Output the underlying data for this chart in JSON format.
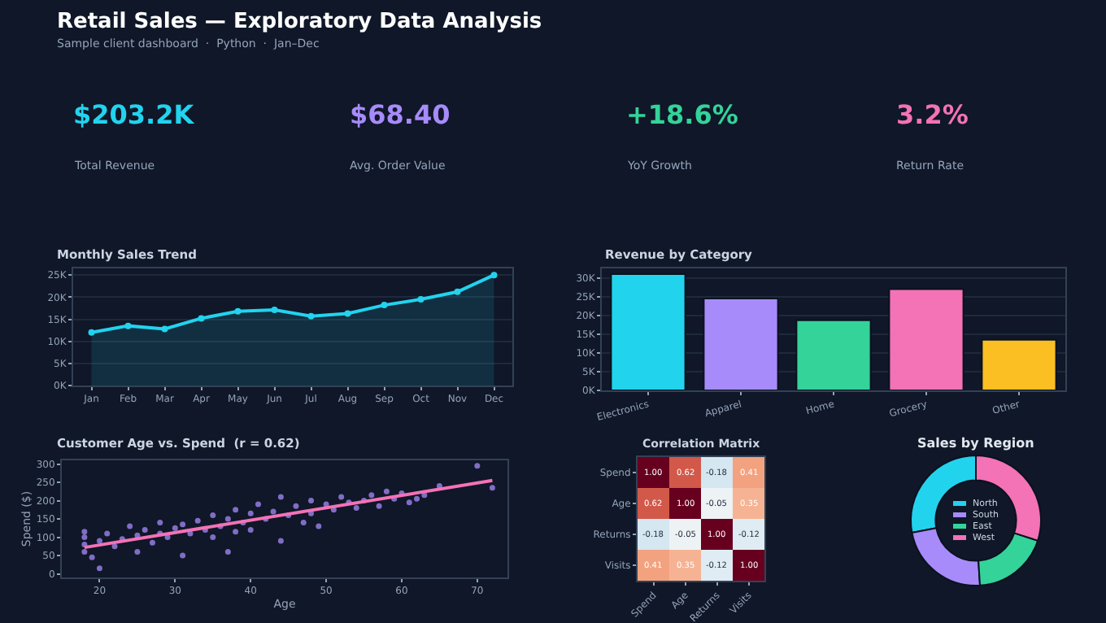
{
  "chart_data": [
    {
      "type": "other",
      "title": "Retail Sales — Exploratory Data Analysis",
      "subtitle": "Sample client dashboard  ·  Python  ·  Jan–Dec",
      "annotations": [
        "$203.2K",
        "Total Revenue",
        "$68.40",
        "Avg. Order Value",
        "+18.6%",
        "YoY Growth",
        "3.2%",
        "Return Rate"
      ],
      "colors": [
        "#22d3ee",
        "#a78bfa",
        "#34d399",
        "#f472b6"
      ]
    },
    {
      "type": "area",
      "title": "Monthly Sales Trend",
      "categories": [
        "Jan",
        "Feb",
        "Mar",
        "Apr",
        "May",
        "Jun",
        "Jul",
        "Aug",
        "Sep",
        "Oct",
        "Nov",
        "Dec"
      ],
      "values": [
        12000,
        13500,
        12800,
        15200,
        16800,
        17100,
        15700,
        16300,
        18200,
        19500,
        21200,
        25000
      ],
      "color": "#22d3ee",
      "ylim": [
        0,
        26500
      ],
      "yticks": [
        {
          "value": 0,
          "label": "0K"
        },
        {
          "value": 5000,
          "label": "5K"
        },
        {
          "value": 10000,
          "label": "10K"
        },
        {
          "value": 15000,
          "label": "15K"
        },
        {
          "value": 20000,
          "label": "20K"
        },
        {
          "value": 25000,
          "label": "25K"
        }
      ],
      "grid": "y",
      "marker": "circle"
    },
    {
      "type": "bar",
      "title": "Revenue by Category",
      "categories": [
        "Electronics",
        "Apparel",
        "Home",
        "Grocery",
        "Other"
      ],
      "values": [
        31000,
        24500,
        18700,
        27000,
        13500
      ],
      "colors": [
        "#22d3ee",
        "#a78bfa",
        "#34d399",
        "#f472b6",
        "#fbbf24"
      ],
      "ylim": [
        0,
        32500
      ],
      "yticks": [
        {
          "value": 0,
          "label": "0K"
        },
        {
          "value": 5000,
          "label": "5K"
        },
        {
          "value": 10000,
          "label": "10K"
        },
        {
          "value": 15000,
          "label": "15K"
        },
        {
          "value": 20000,
          "label": "20K"
        },
        {
          "value": 25000,
          "label": "25K"
        },
        {
          "value": 30000,
          "label": "30K"
        }
      ],
      "grid": "y"
    },
    {
      "type": "scatter",
      "title": "Customer Age vs. Spend  (r = 0.62)",
      "xlabel": "Age",
      "ylabel": "Spend ($)",
      "series": [
        {
          "type": "scatter",
          "color": "#a78bfa",
          "marker": "circle",
          "x": [
            18,
            18,
            18,
            18,
            19,
            20,
            20,
            21,
            22,
            23,
            24,
            25,
            25,
            26,
            27,
            28,
            28,
            29,
            30,
            31,
            31,
            32,
            33,
            34,
            35,
            35,
            36,
            37,
            37,
            38,
            38,
            39,
            40,
            40,
            41,
            42,
            43,
            44,
            44,
            45,
            46,
            47,
            48,
            48,
            49,
            50,
            51,
            52,
            53,
            54,
            55,
            56,
            57,
            58,
            59,
            60,
            61,
            62,
            63,
            65,
            70,
            72
          ],
          "values": [
            100,
            60,
            80,
            115,
            45,
            15,
            90,
            110,
            75,
            95,
            130,
            60,
            105,
            120,
            85,
            140,
            110,
            100,
            125,
            50,
            135,
            110,
            145,
            120,
            160,
            100,
            130,
            60,
            150,
            175,
            115,
            140,
            165,
            120,
            190,
            150,
            170,
            210,
            90,
            160,
            185,
            140,
            200,
            165,
            130,
            190,
            175,
            210,
            195,
            180,
            200,
            215,
            185,
            225,
            205,
            220,
            195,
            205,
            215,
            240,
            295,
            235
          ]
        },
        {
          "type": "line",
          "color": "#f472b6",
          "x": [
            18,
            72
          ],
          "values": [
            72,
            255
          ]
        }
      ],
      "xlim": [
        15,
        74
      ],
      "xticks": [
        20,
        30,
        40,
        50,
        60,
        70
      ],
      "ylim": [
        -10,
        310
      ],
      "yticks": [
        0,
        50,
        100,
        150,
        200,
        250,
        300
      ]
    },
    {
      "type": "heatmap",
      "title": "Correlation Matrix",
      "categories": [
        "Spend",
        "Age",
        "Returns",
        "Visits"
      ],
      "y_categories": [
        "Spend",
        "Age",
        "Returns",
        "Visits"
      ],
      "cells": [
        [
          1.0,
          0.62,
          -0.18,
          0.41
        ],
        [
          0.62,
          1.0,
          -0.05,
          0.35
        ],
        [
          -0.18,
          -0.05,
          1.0,
          -0.12
        ],
        [
          0.41,
          0.35,
          -0.12,
          1.0
        ]
      ],
      "cell_labels": [
        [
          "1.00",
          "0.62",
          "-0.18",
          "0.41"
        ],
        [
          "0.62",
          "1.00",
          "-0.05",
          "0.35"
        ],
        [
          "-0.18",
          "-0.05",
          "1.00",
          "-0.12"
        ],
        [
          "0.41",
          "0.35",
          "-0.12",
          "1.00"
        ]
      ]
    },
    {
      "type": "donut",
      "title": "Sales by Region",
      "categories": [
        "North",
        "South",
        "East",
        "West"
      ],
      "values": [
        28,
        23,
        19,
        30
      ],
      "colors": [
        "#22d3ee",
        "#a78bfa",
        "#34d399",
        "#f472b6"
      ],
      "legend": "center"
    }
  ]
}
